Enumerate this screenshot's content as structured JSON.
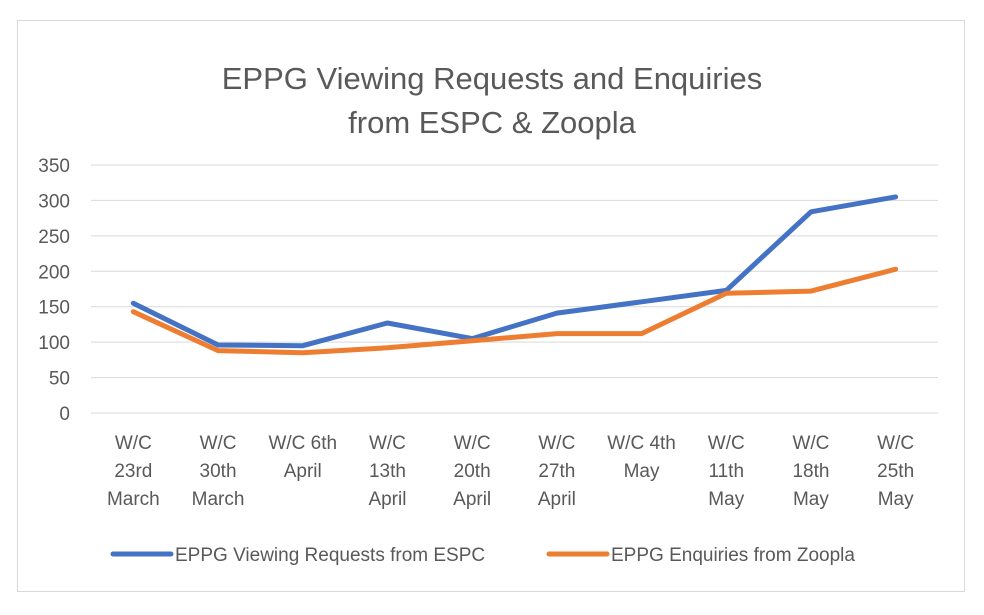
{
  "chart_data": {
    "type": "line",
    "title_lines": [
      "EPPG Viewing Requests and Enquiries",
      "from ESPC & Zoopla"
    ],
    "categories": [
      [
        "W/C",
        "23rd",
        "March"
      ],
      [
        "W/C",
        "30th",
        "March"
      ],
      [
        "W/C 6th",
        "April"
      ],
      [
        "W/C",
        "13th",
        "April"
      ],
      [
        "W/C",
        "20th",
        "April"
      ],
      [
        "W/C",
        "27th",
        "April"
      ],
      [
        "W/C 4th",
        "May"
      ],
      [
        "W/C",
        "11th",
        "May"
      ],
      [
        "W/C",
        "18th",
        "May"
      ],
      [
        "W/C",
        "25th",
        "May"
      ]
    ],
    "ylim": [
      0,
      350
    ],
    "yticks": [
      0,
      50,
      100,
      150,
      200,
      250,
      300,
      350
    ],
    "grid": true,
    "legend_position": "bottom",
    "series": [
      {
        "name": "EPPG Viewing Requests from ESPC",
        "color": "#4472c4",
        "values": [
          155,
          96,
          95,
          127,
          105,
          141,
          157,
          173,
          284,
          305
        ]
      },
      {
        "name": "EPPG Enquiries from Zoopla",
        "color": "#ed7d31",
        "values": [
          143,
          88,
          85,
          92,
          102,
          112,
          112,
          169,
          172,
          203
        ]
      }
    ]
  }
}
